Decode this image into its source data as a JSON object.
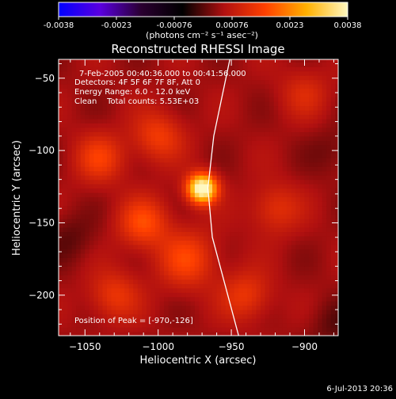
{
  "chart_data": {
    "type": "heatmap",
    "title": "Reconstructed RHESSI Image",
    "xlabel": "Heliocentric X (arcsec)",
    "ylabel": "Heliocentric Y (arcsec)",
    "xlim": [
      -1068,
      -877
    ],
    "ylim": [
      -228,
      -37
    ],
    "x_ticks": [
      -1050,
      -1000,
      -950,
      -900
    ],
    "y_ticks": [
      -50,
      -100,
      -150,
      -200
    ],
    "colorbar": {
      "min": -0.0038,
      "max": 0.0038,
      "ticks": [
        "-0.0038",
        "-0.0023",
        "-0.00076",
        "0.00076",
        "0.0023",
        "0.0038"
      ],
      "unit_label": "(photons cm⁻² s⁻¹ asec⁻²)",
      "colormap": [
        "#0000ff",
        "#5a00e0",
        "#2a0030",
        "#000000",
        "#b01010",
        "#ff4000",
        "#ffb000",
        "#fff8c0"
      ]
    },
    "annotations": [
      "7-Feb-2005 00:40:36.000 to 00:41:56.000",
      "Detectors: 4F 5F 6F 7F 8F, Att 0",
      "Energy Range: 6.0 - 12.0 keV",
      "Clean    Total counts: 5.53E+03"
    ],
    "peak_label": "Position of Peak = [-970,-126]",
    "peak": {
      "x": -970,
      "y": -126,
      "value": 0.0038
    },
    "limb_curve": [
      [
        -951,
        -37
      ],
      [
        -962,
        -90
      ],
      [
        -966,
        -126
      ],
      [
        -963,
        -160
      ],
      [
        -945,
        -228
      ]
    ],
    "sources": [
      {
        "x": -970,
        "y": -126,
        "amp": 0.0038,
        "sigma": 7
      },
      {
        "x": -1010,
        "y": -150,
        "amp": 0.0012,
        "sigma": 12
      },
      {
        "x": -1040,
        "y": -105,
        "amp": 0.001,
        "sigma": 12
      },
      {
        "x": -980,
        "y": -175,
        "amp": 0.0011,
        "sigma": 14
      },
      {
        "x": -1030,
        "y": -200,
        "amp": 0.0009,
        "sigma": 12
      },
      {
        "x": -1000,
        "y": -90,
        "amp": 0.001,
        "sigma": 12
      },
      {
        "x": -940,
        "y": -200,
        "amp": 0.0009,
        "sigma": 12
      },
      {
        "x": -920,
        "y": -140,
        "amp": 0.0008,
        "sigma": 12
      },
      {
        "x": -900,
        "y": -60,
        "amp": 0.0006,
        "sigma": 12
      },
      {
        "x": -1060,
        "y": -160,
        "amp": -0.0004,
        "sigma": 12
      },
      {
        "x": -880,
        "y": -220,
        "amp": -0.0004,
        "sigma": 12
      },
      {
        "x": -880,
        "y": -100,
        "amp": -0.0003,
        "sigma": 12
      }
    ]
  },
  "footer": {
    "timestamp": "6-Jul-2013 20:36"
  }
}
